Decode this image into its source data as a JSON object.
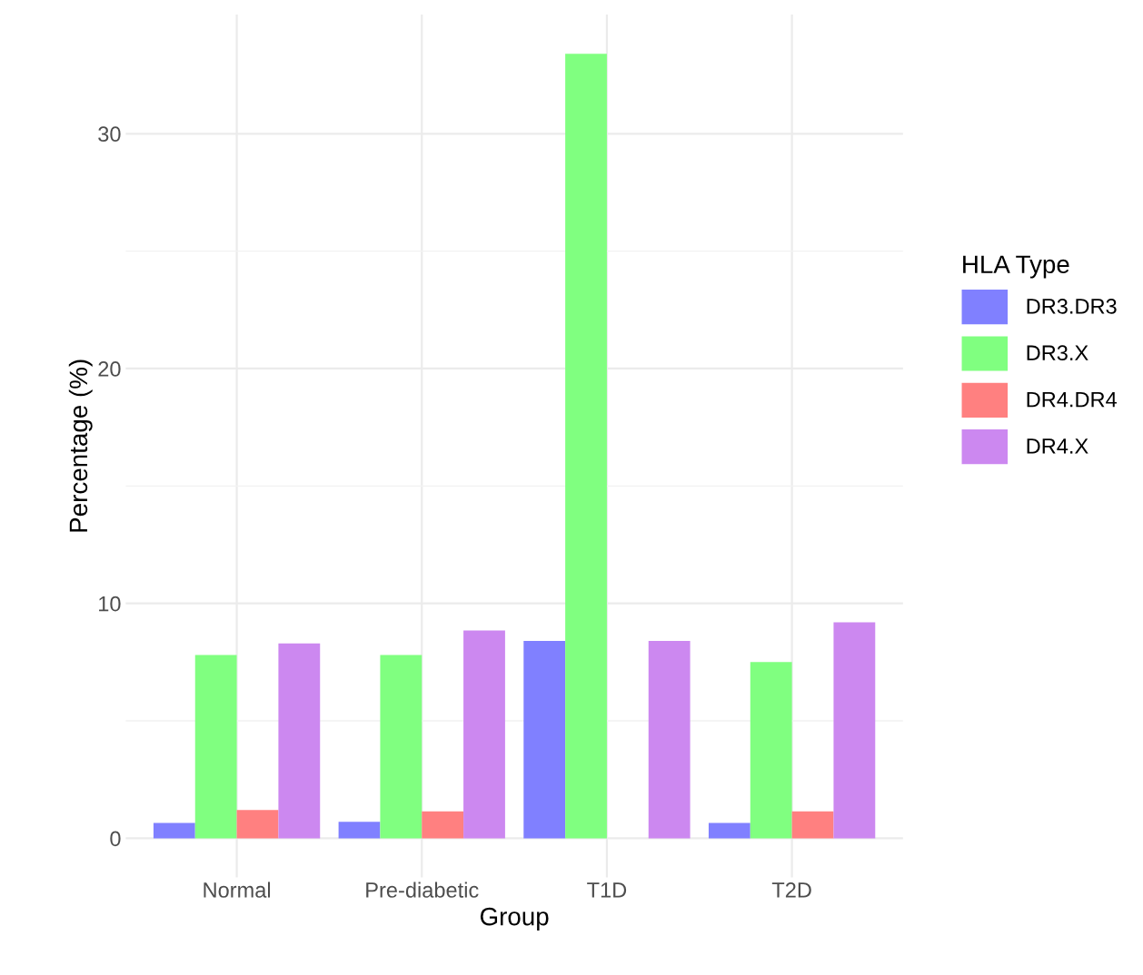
{
  "chart_data": {
    "type": "bar",
    "xlabel": "Group",
    "ylabel": "Percentage (%)",
    "legend_title": "HLA Type",
    "categories": [
      "Normal",
      "Pre-diabetic",
      "T1D",
      "T2D"
    ],
    "series": [
      {
        "name": "DR3.DR3",
        "color": "#8080ff",
        "values": [
          0.65,
          0.7,
          8.4,
          0.65
        ]
      },
      {
        "name": "DR3.X",
        "color": "#80ff80",
        "values": [
          7.8,
          7.8,
          33.4,
          7.5
        ]
      },
      {
        "name": "DR4.DR4",
        "color": "#ff8080",
        "values": [
          1.2,
          1.15,
          null,
          1.15
        ]
      },
      {
        "name": "DR4.X",
        "color": "#cc88f0",
        "values": [
          8.3,
          8.85,
          8.4,
          9.2
        ]
      }
    ],
    "ylim": [
      -1.67,
      35.07
    ],
    "yticks": [
      0,
      {
        "value": 5,
        "label": null
      },
      10,
      {
        "value": 15,
        "label": null
      },
      20,
      {
        "value": 25,
        "label": null
      },
      30
    ],
    "grid": true,
    "legend": "right"
  }
}
